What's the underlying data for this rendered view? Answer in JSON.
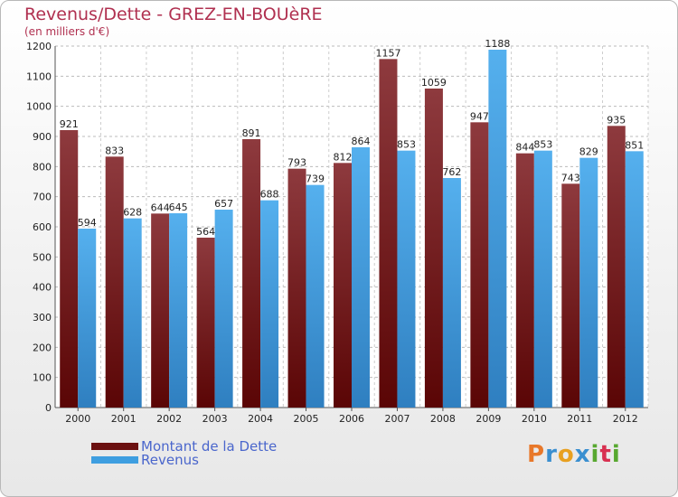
{
  "header": {
    "title": "Revenus/Dette - GREZ-EN-BOUèRE",
    "subtitle": "(en milliers d'€)"
  },
  "legend": {
    "items": [
      {
        "label": "Montant de la Dette",
        "color": "#6b1010"
      },
      {
        "label": "Revenus",
        "color": "#3e9ee0"
      }
    ]
  },
  "logo": {
    "text": "Proxiti",
    "colors": [
      "#e8782a",
      "#3a8fd0",
      "#e8a020",
      "#3a8fd0",
      "#58a830",
      "#d83050",
      "#58a830"
    ]
  },
  "chart_data": {
    "type": "bar",
    "title": "Revenus/Dette - GREZ-EN-BOUèRE",
    "subtitle": "(en milliers d'€)",
    "categories": [
      "2000",
      "2001",
      "2002",
      "2003",
      "2004",
      "2005",
      "2006",
      "2007",
      "2008",
      "2009",
      "2010",
      "2011",
      "2012"
    ],
    "series": [
      {
        "name": "Montant de la Dette",
        "values": [
          921,
          833,
          644,
          564,
          891,
          793,
          812,
          1157,
          1059,
          947,
          844,
          743,
          935
        ],
        "color": "#6b1010"
      },
      {
        "name": "Revenus",
        "values": [
          594,
          628,
          645,
          657,
          688,
          739,
          864,
          853,
          762,
          1188,
          853,
          829,
          851
        ],
        "color": "#3e9ee0"
      }
    ],
    "ylim": [
      0,
      1200
    ],
    "yticks": [
      0,
      100,
      200,
      300,
      400,
      500,
      600,
      700,
      800,
      900,
      1000,
      1100,
      1200
    ],
    "grid": true,
    "legend_position": "bottom-left"
  }
}
